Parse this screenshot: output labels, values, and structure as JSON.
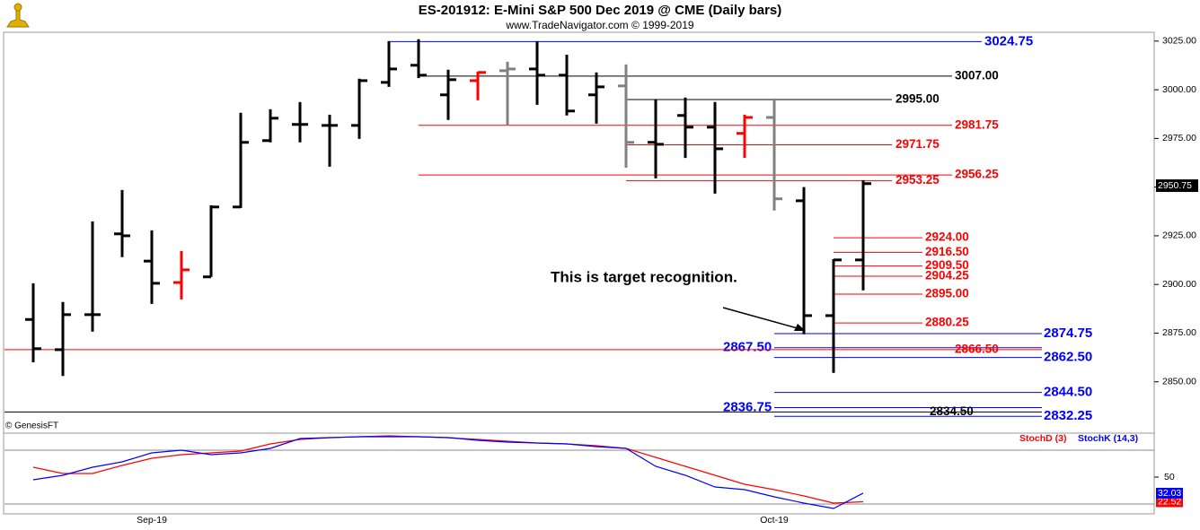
{
  "chart_data": [
    {
      "type": "ohlc",
      "title": "ES-201912:  E-Mini S&P 500 Dec 2019 @ CME  (Daily bars)",
      "subtitle": "www.TradeNavigator.com © 1999-2019",
      "source": "© GenesisFT",
      "annotation": "This is target recognition.",
      "ylim": [
        2825,
        3030
      ],
      "yticks": [
        {
          "value": 2850,
          "label": "2850.00"
        },
        {
          "value": 2875,
          "label": "2875.00"
        },
        {
          "value": 2900,
          "label": "2900.00"
        },
        {
          "value": 2925,
          "label": "2925.00"
        },
        {
          "value": 2950,
          "label": "2950.00"
        },
        {
          "value": 2975,
          "label": "2975.00"
        },
        {
          "value": 3000,
          "label": "3000.00"
        },
        {
          "value": 3025,
          "label": "3025.00"
        }
      ],
      "last_price": 2950.75,
      "open": [
        2882,
        2866.5,
        2884.5,
        2926,
        2912,
        2901,
        2903.9,
        2939.8,
        2973.9,
        2982.2,
        2981.7,
        2981.7,
        3003.8,
        3012.6,
        2997.4,
        3004.7,
        3009.8,
        3010.7,
        3007.5,
        2997.4,
        3002,
        2973,
        2986.8,
        2980.8,
        2977.6,
        2985.8,
        2943,
        2884,
        2912.6
      ],
      "high": [
        2900.6,
        2891,
        2932.4,
        2948.5,
        2927.8,
        2917.2,
        2940.7,
        2988.2,
        2990,
        2993.7,
        2987.2,
        3005.7,
        3025,
        3026,
        3010.3,
        3009.3,
        3014.4,
        3025,
        3018,
        3008.9,
        3013,
        2995,
        2996,
        2993.7,
        2987.2,
        2995.5,
        2950,
        2913,
        2953.6
      ],
      "low": [
        2860,
        2853,
        2875.8,
        2914,
        2890,
        2892.3,
        2903.9,
        2939.3,
        2973,
        2973,
        2960.5,
        2974.8,
        3001.5,
        3006,
        2984.5,
        2994.6,
        2981.7,
        2992.3,
        2986.8,
        2982.6,
        2960,
        2954.5,
        2965,
        2946.7,
        2965,
        2938,
        2874.4,
        2854.6,
        2897
      ],
      "close": [
        2867,
        2884.5,
        2884.5,
        2925,
        2900.6,
        2907.5,
        2939.8,
        2973,
        2985.4,
        2982.2,
        2981.7,
        3004.7,
        3010.7,
        3007.5,
        3005.2,
        3008.9,
        3010.7,
        3007.5,
        2989.1,
        3001.5,
        2973,
        2972,
        2980.8,
        2969.7,
        2985.8,
        2944,
        2884,
        2912.6,
        2951.8
      ],
      "colors": [
        "#000000",
        "#000000",
        "#000000",
        "#000000",
        "#000000",
        "#ff0000",
        "#000000",
        "#000000",
        "#000000",
        "#000000",
        "#000000",
        "#000000",
        "#000000",
        "#000000",
        "#000000",
        "#ff0000",
        "#808080",
        "#000000",
        "#000000",
        "#000000",
        "#808080",
        "#000000",
        "#000000",
        "#000000",
        "#ff0000",
        "#808080",
        "#000000",
        "#000000",
        "#000000"
      ],
      "levels": [
        {
          "value": 3024.75,
          "label": "3024.75",
          "color": "#0000ff"
        },
        {
          "value": 3007,
          "label": "3007.00",
          "color": "#000000"
        },
        {
          "value": 2995,
          "label": "2995.00",
          "color": "#000000"
        },
        {
          "value": 2981.75,
          "label": "2981.75",
          "color": "#ff0000"
        },
        {
          "value": 2971.75,
          "label": "2971.75",
          "color": "#ff0000"
        },
        {
          "value": 2956.25,
          "label": "2956.25",
          "color": "#ff0000"
        },
        {
          "value": 2953.25,
          "label": "2953.25",
          "color": "#ff0000"
        },
        {
          "value": 2924,
          "label": "2924.00",
          "color": "#ff0000"
        },
        {
          "value": 2916.5,
          "label": "2916.50",
          "color": "#ff0000"
        },
        {
          "value": 2909.5,
          "label": "2909.50",
          "color": "#ff0000"
        },
        {
          "value": 2904.25,
          "label": "2904.25",
          "color": "#ff0000"
        },
        {
          "value": 2895,
          "label": "2895.00",
          "color": "#ff0000"
        },
        {
          "value": 2880.25,
          "label": "2880.25",
          "color": "#ff0000"
        },
        {
          "value": 2874.75,
          "label": "2874.75",
          "color": "#0000ff"
        },
        {
          "value": 2867.5,
          "label": "2867.50",
          "color": "#0000ff"
        },
        {
          "value": 2866.5,
          "label": "2866.50",
          "color": "#ff0000"
        },
        {
          "value": 2862.5,
          "label": "2862.50",
          "color": "#0000ff"
        },
        {
          "value": 2844.5,
          "label": "2844.50",
          "color": "#0000ff"
        },
        {
          "value": 2836.75,
          "label": "2836.75",
          "color": "#0000ff"
        },
        {
          "value": 2834.5,
          "label": "2834.50",
          "color": "#000000"
        },
        {
          "value": 2832.25,
          "label": "2832.25",
          "color": "#0000ff"
        }
      ]
    },
    {
      "type": "line",
      "categories": [
        null,
        null,
        null,
        null,
        "Sep-19",
        null,
        null,
        null,
        null,
        null,
        null,
        null,
        null,
        null,
        null,
        null,
        null,
        null,
        null,
        null,
        null,
        null,
        null,
        null,
        null,
        "Oct-19",
        null,
        null,
        null
      ],
      "ylim": [
        9,
        102
      ],
      "yticks": [
        50
      ],
      "levels": [
        20,
        80
      ],
      "series": [
        {
          "name": "StochD (3)",
          "color": "#ff0000",
          "values": [
            61,
            54,
            54,
            63,
            71,
            75,
            77,
            79,
            87,
            92,
            94,
            95,
            96,
            95,
            94,
            92,
            90,
            88,
            87,
            85,
            82,
            72,
            62,
            52,
            42,
            36,
            29,
            21,
            22.52
          ]
        },
        {
          "name": "StochK (14,3)",
          "color": "#0000ff",
          "values": [
            47,
            52,
            61,
            67,
            77,
            80,
            75,
            77,
            82,
            93,
            94,
            95,
            95,
            95,
            94,
            91,
            89,
            88,
            87,
            84,
            82,
            62,
            52,
            39,
            36,
            28,
            21,
            15,
            32.03
          ]
        }
      ]
    }
  ]
}
